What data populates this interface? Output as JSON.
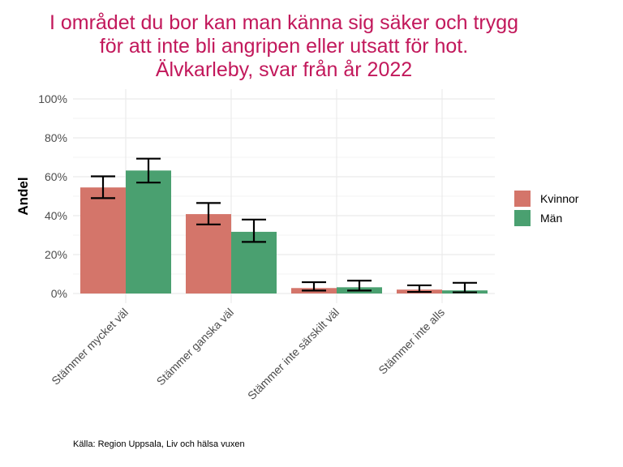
{
  "title_lines": [
    "I området du bor kan man känna sig säker och trygg",
    "för att inte bli angripen eller utsatt för hot.",
    "Älvkarleby, svar från år 2022"
  ],
  "caption": "Källa: Region Uppsala, Liv och hälsa vuxen",
  "colors": {
    "title": "#c2185b",
    "kvinnor": "#d4756a",
    "man": "#4aa070",
    "grid": "#ebebeb"
  },
  "chart_data": {
    "type": "bar",
    "title": "I området du bor kan man känna sig säker och trygg för att inte bli angripen eller utsatt för hot. Älvkarleby, svar från år 2022",
    "xlabel": "",
    "ylabel": "Andel",
    "ylim": [
      0,
      100
    ],
    "yticks": [
      0,
      20,
      40,
      60,
      80,
      100
    ],
    "ytick_labels": [
      "0%",
      "20%",
      "40%",
      "60%",
      "80%",
      "100%"
    ],
    "categories": [
      "Stämmer mycket väl",
      "Stämmer ganska väl",
      "Stämmer inte särskilt väl",
      "Stämmer inte alls"
    ],
    "series": [
      {
        "name": "Kvinnor",
        "color": "#d4756a",
        "values": [
          54.5,
          40.8,
          2.8,
          2.0
        ],
        "err_low": [
          49.0,
          35.5,
          1.5,
          0.8
        ],
        "err_high": [
          60.2,
          46.5,
          5.8,
          4.2
        ]
      },
      {
        "name": "Män",
        "color": "#4aa070",
        "values": [
          63.2,
          31.7,
          3.2,
          1.6
        ],
        "err_low": [
          57.0,
          26.5,
          1.5,
          0.6
        ],
        "err_high": [
          69.3,
          38.0,
          6.6,
          5.5
        ]
      }
    ],
    "grid": true,
    "legend_position": "right"
  }
}
